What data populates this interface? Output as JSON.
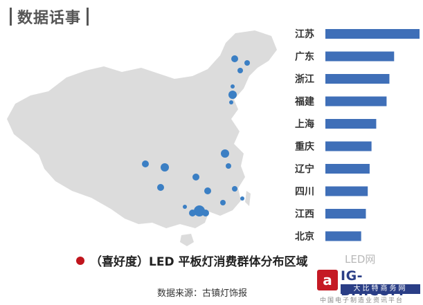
{
  "header": {
    "title": "数据话事"
  },
  "map": {
    "color": "#dcdcdc",
    "dot_color": "#3b7fc4"
  },
  "chart_data": {
    "type": "bar",
    "orientation": "horizontal",
    "categories": [
      "江苏",
      "广东",
      "浙江",
      "福建",
      "上海",
      "重庆",
      "辽宁",
      "四川",
      "江西",
      "北京"
    ],
    "values": [
      100,
      73,
      68,
      65,
      54,
      49,
      47,
      45,
      43,
      38
    ],
    "bar_color": "#3f6fb8"
  },
  "subtitle": "（喜好度）LED 平板灯消费群体分布区域",
  "watermark_text": "LED网",
  "source": "数据来源：古镇灯饰报",
  "logo": {
    "mark": "a",
    "brand": "IG-BIT.COM",
    "tag": "大比特商务网",
    "small": "中国电子制造业资讯平台"
  }
}
